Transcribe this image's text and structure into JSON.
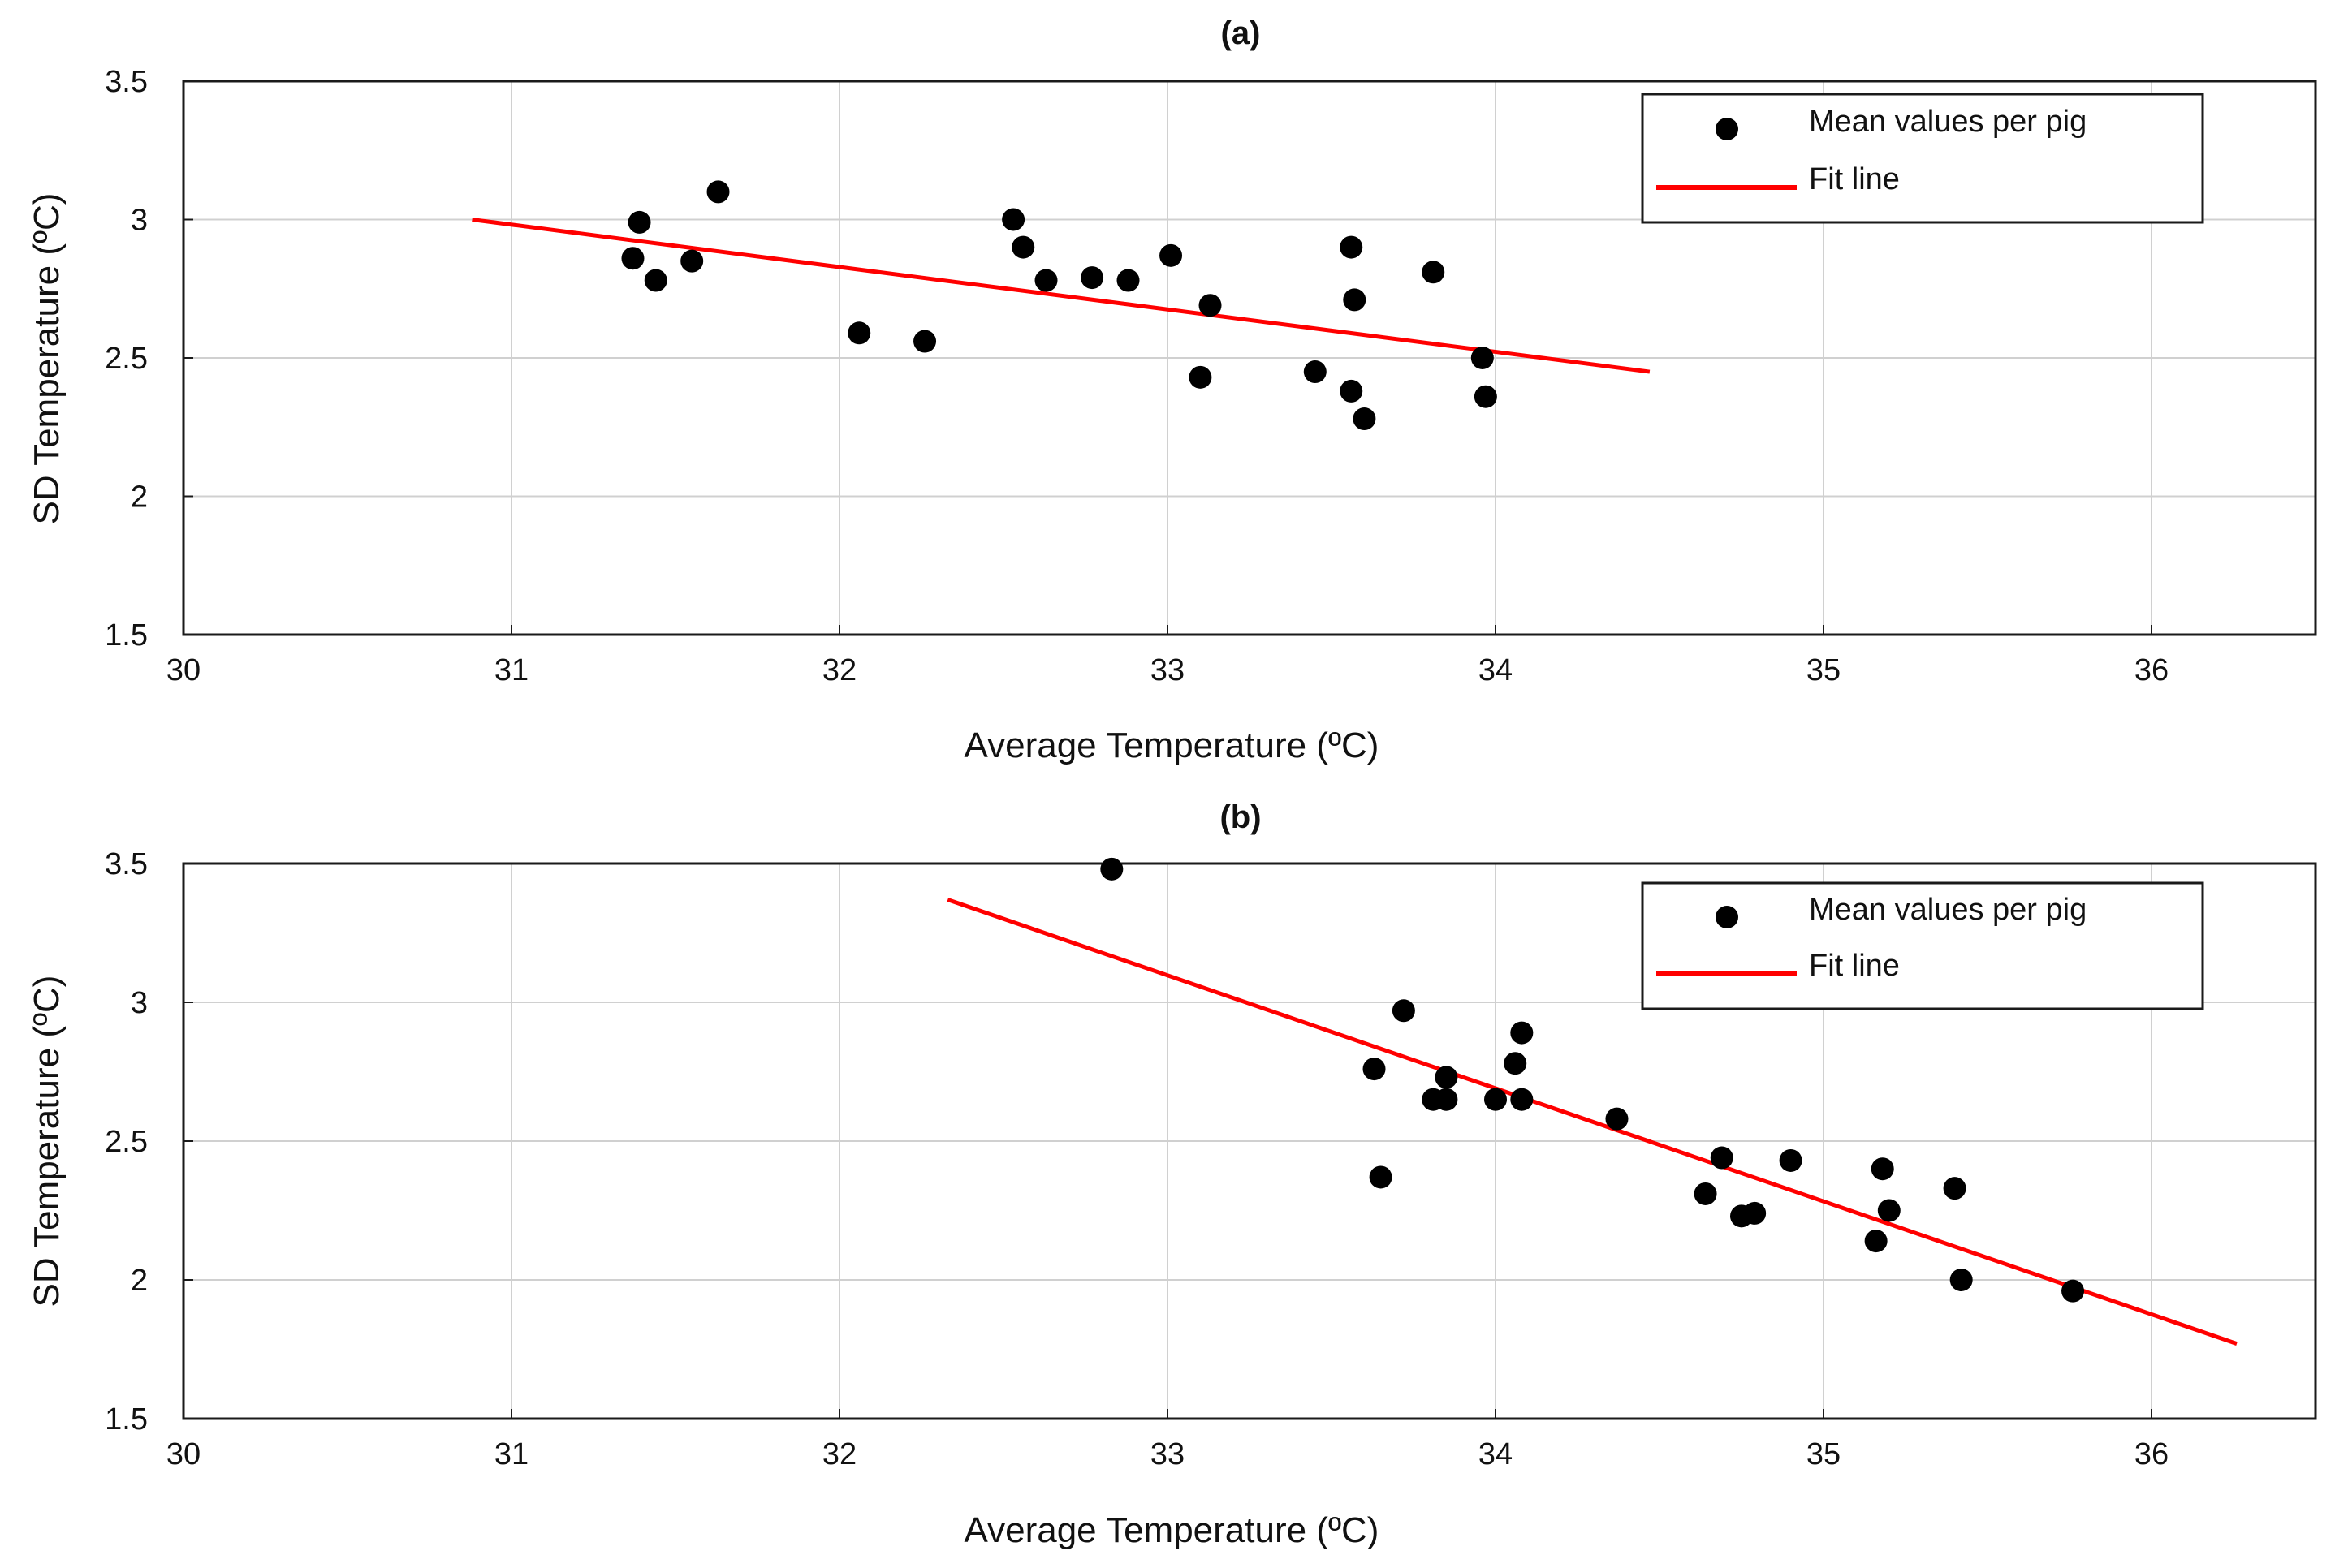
{
  "chart_data": [
    {
      "type": "scatter",
      "title": "(a)",
      "xlabel": "Average Temperature (ºC)",
      "ylabel": "SD  Temperature (ºC)",
      "xlim": [
        30,
        36.5
      ],
      "ylim": [
        1.5,
        3.5
      ],
      "xticks": [
        "30",
        "31",
        "32",
        "33",
        "34",
        "35",
        "36"
      ],
      "yticks": [
        "1.5",
        "2",
        "2.5",
        "3",
        "3.5"
      ],
      "grid": true,
      "legend": [
        "Mean values per pig",
        "Fit line"
      ],
      "legend_position": "top-right",
      "colors": {
        "points": "#000000",
        "fit": "#ff0000"
      },
      "series": [
        {
          "name": "Mean values per pig",
          "x": [
            31.37,
            31.39,
            31.44,
            31.55,
            31.63,
            32.06,
            32.26,
            32.53,
            32.56,
            32.63,
            32.77,
            32.88,
            33.01,
            33.1,
            33.13,
            33.45,
            33.56,
            33.56,
            33.57,
            33.6,
            33.81,
            33.96,
            33.97
          ],
          "y": [
            2.86,
            2.99,
            2.78,
            2.85,
            3.1,
            2.59,
            2.56,
            3.0,
            2.9,
            2.78,
            2.79,
            2.78,
            2.87,
            2.43,
            2.69,
            2.45,
            2.9,
            2.38,
            2.71,
            2.28,
            2.81,
            2.5,
            2.36
          ]
        },
        {
          "name": "Fit line",
          "x": [
            30.88,
            34.47
          ],
          "y": [
            3.0,
            2.45
          ]
        }
      ]
    },
    {
      "type": "scatter",
      "title": "(b)",
      "xlabel": "Average Temperature (ºC)",
      "ylabel": "SD  Temperature (ºC)",
      "xlim": [
        30,
        36.5
      ],
      "ylim": [
        1.5,
        3.5
      ],
      "xticks": [
        "30",
        "31",
        "32",
        "33",
        "34",
        "35",
        "36"
      ],
      "yticks": [
        "1.5",
        "2",
        "2.5",
        "3",
        "3.5"
      ],
      "grid": true,
      "legend": [
        "Mean values per pig",
        "Fit line"
      ],
      "legend_position": "top-right",
      "colors": {
        "points": "#000000",
        "fit": "#ff0000"
      },
      "series": [
        {
          "name": "Mean values per pig",
          "x": [
            32.83,
            33.63,
            33.65,
            33.72,
            33.81,
            33.85,
            33.85,
            34.0,
            34.06,
            34.08,
            34.08,
            34.37,
            34.64,
            34.69,
            34.75,
            34.79,
            34.9,
            35.16,
            35.18,
            35.2,
            35.4,
            35.42,
            35.76
          ],
          "y": [
            3.48,
            2.76,
            2.37,
            2.97,
            2.65,
            2.65,
            2.73,
            2.65,
            2.78,
            2.89,
            2.65,
            2.58,
            2.31,
            2.44,
            2.23,
            2.24,
            2.43,
            2.14,
            2.4,
            2.25,
            2.33,
            2.0,
            1.96
          ]
        },
        {
          "name": "Fit line",
          "x": [
            32.33,
            36.26
          ],
          "y": [
            3.37,
            1.77
          ]
        }
      ]
    }
  ]
}
